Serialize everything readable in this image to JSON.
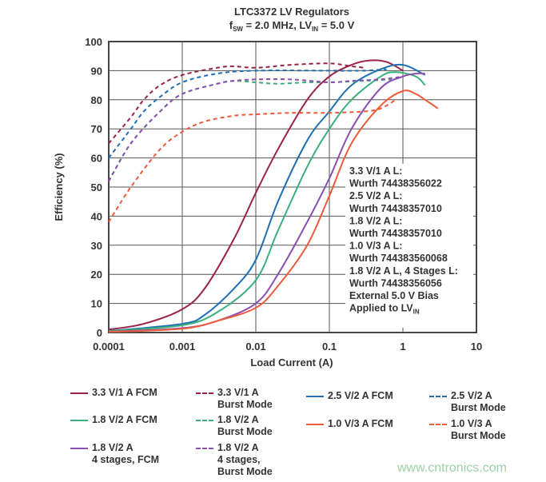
{
  "chart_data": {
    "type": "line",
    "title": "LTC3372 LV Regulators",
    "subtitle": {
      "pre": "f",
      "sub1": "SW",
      "mid": " = 2.0 MHz, LV",
      "sub2": "IN",
      "post": " = 5.0 V"
    },
    "xlabel": "Load Current (A)",
    "ylabel": "Efficiency (%)",
    "xscale": "log",
    "xlim": [
      0.0001,
      10
    ],
    "ylim": [
      0,
      100
    ],
    "xticks": [
      "0.0001",
      "0.001",
      "0.01",
      "0.1",
      "1",
      "10"
    ],
    "yticks": [
      "0",
      "10",
      "20",
      "30",
      "40",
      "50",
      "60",
      "70",
      "80",
      "90",
      "100"
    ],
    "grid": true,
    "annotation": [
      "3.3 V/1 A L:",
      "Wurth 74438356022",
      "2.5 V/2 A L:",
      "Wurth 74438357010",
      "1.8 V/2 A L:",
      "Wurth 74438357010",
      "1.0 V/3 A L:",
      "Wurth 744383560068",
      "1.8 V/2 A L, 4 Stages L:",
      "Wurth 74438356056",
      "External 5.0 V Bias",
      "Applied to LV"
    ],
    "annotation_sub": "IN",
    "series": [
      {
        "name": "3.3 V/1 A FCM",
        "color": "#9b2246",
        "dash": false,
        "x": [
          0.0001,
          0.0003,
          0.001,
          0.002,
          0.005,
          0.01,
          0.02,
          0.05,
          0.1,
          0.2,
          0.35,
          0.6,
          1
        ],
        "y": [
          1,
          3,
          8,
          15,
          32,
          48,
          63,
          80,
          88,
          92,
          93.5,
          93,
          90
        ]
      },
      {
        "name": "3.3 V/1 A Burst Mode",
        "color": "#9b2246",
        "dash": true,
        "x": [
          0.0001,
          0.0002,
          0.0003,
          0.0005,
          0.001,
          0.003,
          0.005,
          0.01,
          0.03,
          0.1,
          0.2,
          0.3
        ],
        "y": [
          65,
          74,
          80,
          85,
          88.5,
          91,
          91.5,
          91,
          92,
          92.5,
          91.5,
          91
        ]
      },
      {
        "name": "2.5 V/2 A FCM",
        "color": "#1f6fb5",
        "dash": false,
        "x": [
          0.0001,
          0.001,
          0.002,
          0.005,
          0.01,
          0.02,
          0.05,
          0.1,
          0.2,
          0.5,
          1,
          2
        ],
        "y": [
          0.5,
          3,
          6,
          15,
          25,
          45,
          66,
          76,
          85,
          90.5,
          92,
          88.5
        ]
      },
      {
        "name": "2.5 V/2 A Burst Mode",
        "color": "#1f6fb5",
        "dash": true,
        "x": [
          0.0001,
          0.0002,
          0.0003,
          0.0005,
          0.001,
          0.003,
          0.01,
          0.1,
          0.3,
          0.6
        ],
        "y": [
          60,
          70,
          76,
          81,
          86,
          89,
          90,
          90,
          90,
          90.5
        ]
      },
      {
        "name": "1.8 V/2 A FCM",
        "color": "#3ab07a",
        "dash": false,
        "x": [
          0.0001,
          0.001,
          0.003,
          0.01,
          0.02,
          0.05,
          0.1,
          0.2,
          0.5,
          0.8,
          1.5,
          2
        ],
        "y": [
          0.5,
          2.5,
          7,
          18,
          35,
          57,
          70,
          80,
          88,
          89.5,
          88,
          85
        ]
      },
      {
        "name": "1.8 V/2 A Burst Mode",
        "color": "#3ab07a",
        "dash": true,
        "x": [
          0.0001,
          0.0002,
          0.0005,
          0.001,
          0.003,
          0.005,
          0.01,
          0.02,
          0.05,
          0.1,
          0.3,
          0.7
        ],
        "y": [
          52,
          65,
          76,
          82,
          85.5,
          86.5,
          86,
          85.5,
          86,
          86,
          86.5,
          87
        ]
      },
      {
        "name": "1.8 V/2 A 4 stages, FCM",
        "color": "#8a4fb0",
        "dash": false,
        "x": [
          0.0001,
          0.001,
          0.003,
          0.01,
          0.02,
          0.05,
          0.1,
          0.2,
          0.5,
          1,
          1.5,
          2
        ],
        "y": [
          0.3,
          1.5,
          4,
          10,
          20,
          38,
          53,
          70,
          84,
          88,
          89,
          89
        ]
      },
      {
        "name": "1.8 V/2 A 4 stages, Burst Mode",
        "color": "#8a4fb0",
        "dash": true,
        "x": [
          0.0001,
          0.0002,
          0.0005,
          0.001,
          0.003,
          0.005,
          0.01,
          0.03,
          0.1,
          0.2,
          0.5,
          1
        ],
        "y": [
          52,
          65,
          76,
          82,
          85.5,
          86.5,
          87,
          87,
          86,
          86.5,
          87,
          88
        ]
      },
      {
        "name": "1.0 V/3 A FCM",
        "color": "#ee5a3a",
        "dash": false,
        "x": [
          0.0001,
          0.001,
          0.003,
          0.01,
          0.02,
          0.05,
          0.1,
          0.2,
          0.5,
          1,
          1.5,
          2,
          3
        ],
        "y": [
          0.2,
          1.3,
          4,
          8.5,
          16,
          30,
          47,
          65,
          78,
          83,
          82,
          80,
          77
        ]
      },
      {
        "name": "1.0 V/3 A Burst Mode",
        "color": "#ee5a3a",
        "dash": true,
        "x": [
          0.0001,
          0.0002,
          0.0005,
          0.001,
          0.002,
          0.005,
          0.01,
          0.03,
          0.1,
          0.3,
          0.5,
          0.8
        ],
        "y": [
          38,
          50,
          63,
          69,
          72.5,
          74.5,
          75,
          75.5,
          75.5,
          76,
          77,
          80
        ]
      }
    ],
    "legend": [
      {
        "lines": [
          "3.3 V/1 A FCM"
        ],
        "series": 0
      },
      {
        "lines": [
          "3.3 V/1 A",
          "Burst Mode"
        ],
        "series": 1
      },
      {
        "lines": [
          "2.5 V/2 A FCM"
        ],
        "series": 2
      },
      {
        "lines": [
          "2.5 V/2 A",
          "Burst Mode"
        ],
        "series": 3
      },
      {
        "lines": [
          "1.8 V/2 A FCM"
        ],
        "series": 4
      },
      {
        "lines": [
          "1.8 V/2 A",
          "Burst Mode"
        ],
        "series": 5
      },
      {
        "lines": [
          "1.0 V/3 A FCM"
        ],
        "series": 8
      },
      {
        "lines": [
          "1.0 V/3 A",
          "Burst Mode"
        ],
        "series": 9
      },
      {
        "lines": [
          "1.8 V/2 A",
          "4 stages, FCM"
        ],
        "series": 6
      },
      {
        "lines": [
          "1.8 V/2 A",
          "4 stages,",
          "Burst Mode"
        ],
        "series": 7
      }
    ]
  },
  "watermark": "www.cntronics.com"
}
